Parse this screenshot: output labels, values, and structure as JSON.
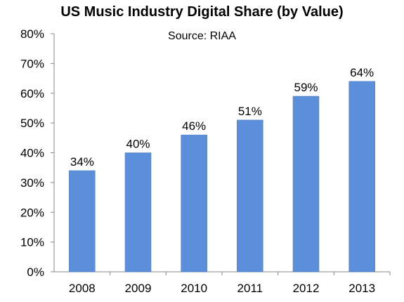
{
  "chart_data": {
    "type": "bar",
    "title": "US Music Industry Digital Share (by Value)",
    "subtitle": "Source: RIAA",
    "categories": [
      "2008",
      "2009",
      "2010",
      "2011",
      "2012",
      "2013"
    ],
    "values": [
      34,
      40,
      46,
      51,
      59,
      64
    ],
    "data_labels": [
      "34%",
      "40%",
      "46%",
      "51%",
      "59%",
      "64%"
    ],
    "y_ticks": [
      "0%",
      "10%",
      "20%",
      "30%",
      "40%",
      "50%",
      "60%",
      "70%",
      "80%"
    ],
    "ylim": [
      0,
      80
    ],
    "xlabel": "",
    "ylabel": "",
    "grid": false,
    "legend": "none",
    "bar_color": "#5B8FD9",
    "bar_edge_color": "#4A7BC4"
  }
}
